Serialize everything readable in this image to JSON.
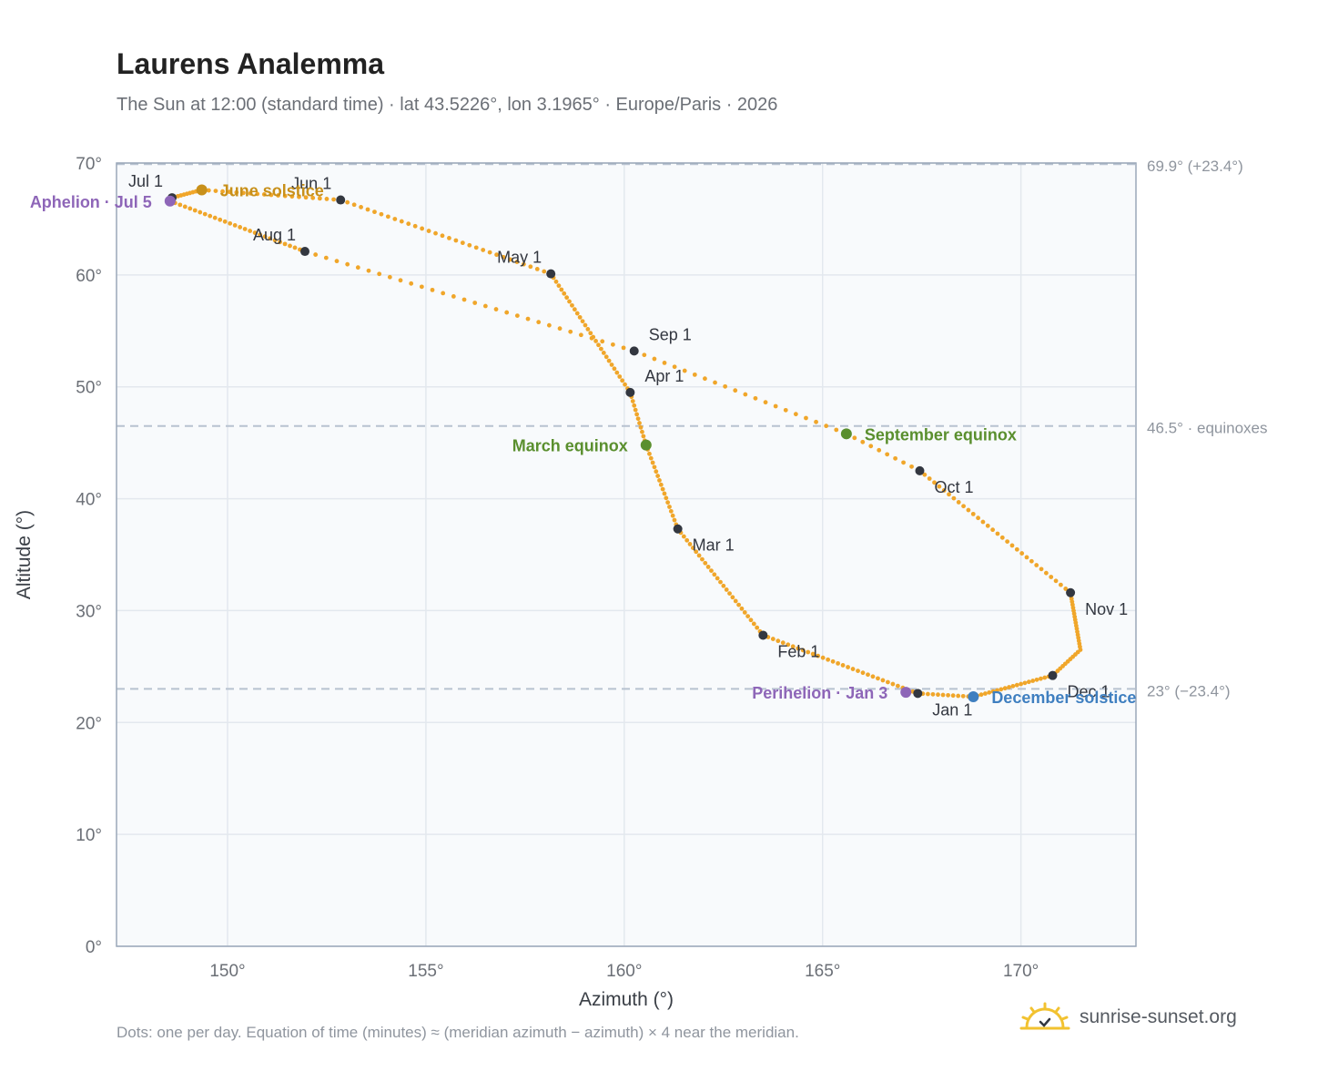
{
  "header": {
    "title": "Laurens Analemma",
    "subtitle": "The Sun at 12:00 (standard time) · lat 43.5226°, lon 3.1965° · Europe/Paris · 2026"
  },
  "footer": {
    "note": "Dots: one per day. Equation of time (minutes) ≈ (meridian azimuth − azimuth) × 4 near the meridian.",
    "brand": "sunrise-sunset.org"
  },
  "colors": {
    "curve": "#f0a62a",
    "month_marker": "#333740",
    "apsis": "#8e66b8",
    "june_solstice": "#c8901a",
    "december_solstice": "#3f7fc0",
    "equinox": "#5a8f2e",
    "plot_bg": "#f8fafc",
    "grid": "#e3e8ee",
    "reference": "#b7c2d0"
  },
  "chart_data": {
    "type": "scatter",
    "title": "Laurens Analemma",
    "xlabel": "Azimuth (°)",
    "ylabel": "Altitude (°)",
    "xlim": [
      147.2,
      172.9
    ],
    "ylim": [
      0,
      70
    ],
    "xticks": [
      150,
      155,
      160,
      165,
      170
    ],
    "xtick_labels": [
      "150°",
      "155°",
      "160°",
      "165°",
      "170°"
    ],
    "yticks": [
      0,
      10,
      20,
      30,
      40,
      50,
      60,
      70
    ],
    "ytick_labels": [
      "0°",
      "10°",
      "20°",
      "30°",
      "40°",
      "50°",
      "60°",
      "70°"
    ],
    "grid": true,
    "series": [
      {
        "points_per": "day",
        "anchors": [
          {
            "date": "2026-01-01",
            "az": 167.4,
            "alt": 22.6
          },
          {
            "date": "2026-02-01",
            "az": 163.5,
            "alt": 27.8
          },
          {
            "date": "2026-03-01",
            "az": 161.35,
            "alt": 37.3
          },
          {
            "date": "2026-03-20",
            "az": 160.55,
            "alt": 44.8
          },
          {
            "date": "2026-04-01",
            "az": 160.15,
            "alt": 49.5
          },
          {
            "date": "2026-05-01",
            "az": 158.15,
            "alt": 60.1
          },
          {
            "date": "2026-06-01",
            "az": 152.85,
            "alt": 66.7
          },
          {
            "date": "2026-06-21",
            "az": 149.35,
            "alt": 67.6
          },
          {
            "date": "2026-07-01",
            "az": 148.6,
            "alt": 66.9
          },
          {
            "date": "2026-07-05",
            "az": 148.55,
            "alt": 66.6
          },
          {
            "date": "2026-08-01",
            "az": 151.95,
            "alt": 62.1
          },
          {
            "date": "2026-09-01",
            "az": 160.25,
            "alt": 53.2
          },
          {
            "date": "2026-09-22",
            "az": 165.6,
            "alt": 45.8
          },
          {
            "date": "2026-10-01",
            "az": 167.45,
            "alt": 42.5
          },
          {
            "date": "2026-11-01",
            "az": 171.25,
            "alt": 31.6
          },
          {
            "date": "2026-11-20",
            "az": 171.5,
            "alt": 26.5
          },
          {
            "date": "2026-12-01",
            "az": 170.8,
            "alt": 24.2
          },
          {
            "date": "2026-12-21",
            "az": 168.8,
            "alt": 22.3
          },
          {
            "date": "2027-01-01",
            "az": 167.4,
            "alt": 22.6
          }
        ]
      }
    ],
    "month_markers": [
      {
        "label": "Jan 1",
        "az": 167.4,
        "alt": 22.6,
        "anchor": "below-right"
      },
      {
        "label": "Feb 1",
        "az": 163.5,
        "alt": 27.8,
        "anchor": "below-right"
      },
      {
        "label": "Mar 1",
        "az": 161.35,
        "alt": 37.3,
        "anchor": "below-right"
      },
      {
        "label": "Apr 1",
        "az": 160.15,
        "alt": 49.5,
        "anchor": "above-right"
      },
      {
        "label": "May 1",
        "az": 158.15,
        "alt": 60.1,
        "anchor": "above-left"
      },
      {
        "label": "Jun 1",
        "az": 152.85,
        "alt": 66.7,
        "anchor": "above-left"
      },
      {
        "label": "Jul 1",
        "az": 148.6,
        "alt": 66.9,
        "anchor": "above-left"
      },
      {
        "label": "Aug 1",
        "az": 151.95,
        "alt": 62.1,
        "anchor": "above-left"
      },
      {
        "label": "Sep 1",
        "az": 160.25,
        "alt": 53.2,
        "anchor": "above-right"
      },
      {
        "label": "Oct 1",
        "az": 167.45,
        "alt": 42.5,
        "anchor": "below-right"
      },
      {
        "label": "Nov 1",
        "az": 171.25,
        "alt": 31.6,
        "anchor": "below-right"
      },
      {
        "label": "Dec 1",
        "az": 170.8,
        "alt": 24.2,
        "anchor": "below-right"
      }
    ],
    "events": [
      {
        "label": "June solstice",
        "az": 149.35,
        "alt": 67.6,
        "color": "#c8901a",
        "side": "right"
      },
      {
        "label": "December solstice",
        "az": 168.8,
        "alt": 22.3,
        "color": "#3f7fc0",
        "side": "right"
      },
      {
        "label": "March equinox",
        "az": 160.55,
        "alt": 44.8,
        "color": "#5a8f2e",
        "side": "left"
      },
      {
        "label": "September equinox",
        "az": 165.6,
        "alt": 45.8,
        "color": "#5a8f2e",
        "side": "right"
      },
      {
        "label": "Aphelion · Jul 5",
        "az": 148.55,
        "alt": 66.6,
        "color": "#8e66b8",
        "side": "left"
      },
      {
        "label": "Perihelion · Jan 3",
        "az": 167.1,
        "alt": 22.7,
        "color": "#8e66b8",
        "side": "left"
      }
    ],
    "reference_lines": [
      {
        "alt": 69.9,
        "label": "69.9° (+23.4°)"
      },
      {
        "alt": 46.5,
        "label": "46.5° · equinoxes"
      },
      {
        "alt": 23.0,
        "label": "23° (−23.4°)"
      }
    ]
  }
}
